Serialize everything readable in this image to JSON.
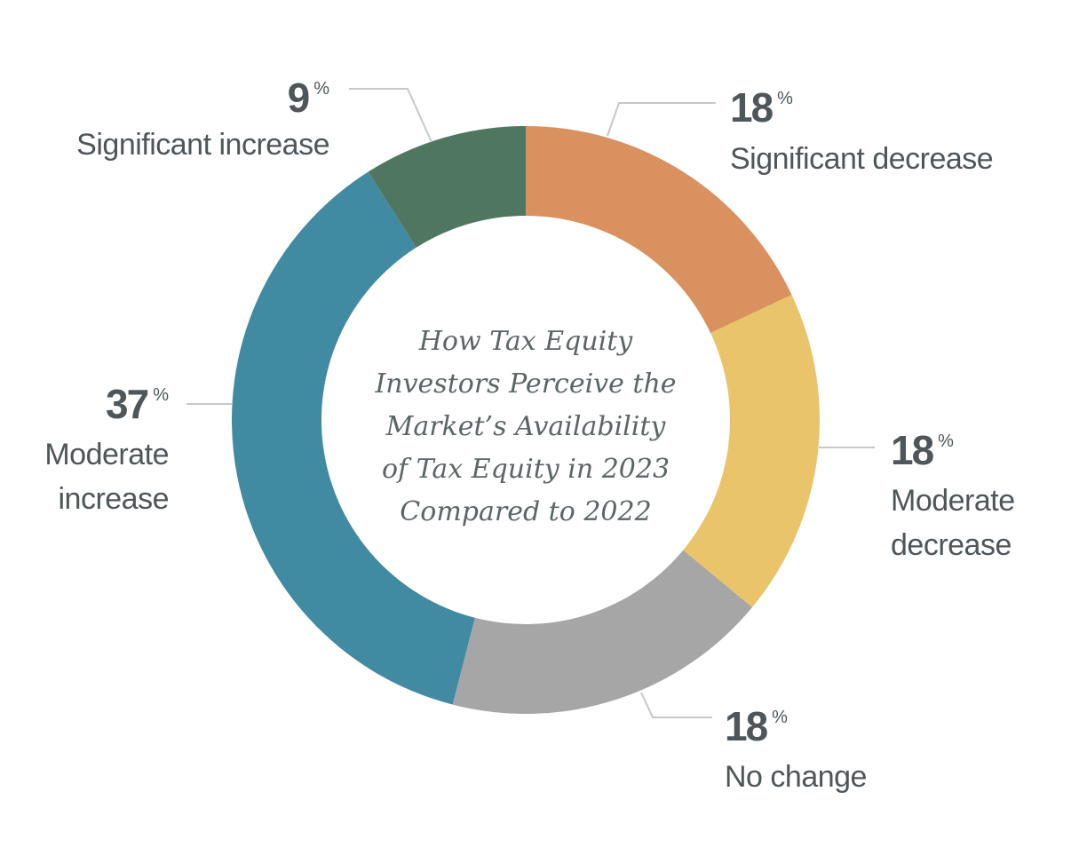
{
  "chart_data": {
    "type": "pie",
    "variant": "donut",
    "title": "How Tax Equity Investors Perceive the Market’s Availability of Tax Equity in 2023 Compared to 2022",
    "title_lines": [
      "How Tax Equity",
      "Investors Perceive the",
      "Market’s Availability",
      "of Tax Equity in 2023",
      "Compared to 2022"
    ],
    "unit": "%",
    "start": "top",
    "direction": "clockwise",
    "slices": [
      {
        "label": "Significant decrease",
        "label_lines": [
          "Significant decrease"
        ],
        "value": 18,
        "value_text": "18",
        "color": "#d99160",
        "label_side": "right"
      },
      {
        "label": "Moderate decrease",
        "label_lines": [
          "Moderate",
          "decrease"
        ],
        "value": 18,
        "value_text": "18",
        "color": "#e9c46a",
        "label_side": "right"
      },
      {
        "label": "No change",
        "label_lines": [
          "No change"
        ],
        "value": 18,
        "value_text": "18",
        "color": "#a5a6a5",
        "label_side": "right"
      },
      {
        "label": "Moderate increase",
        "label_lines": [
          "Moderate",
          "increase"
        ],
        "value": 37,
        "value_text": "37",
        "color": "#408aa2",
        "label_side": "left"
      },
      {
        "label": "Significant increase",
        "label_lines": [
          "Significant increase"
        ],
        "value": 9,
        "value_text": "9",
        "color": "#4f7760",
        "label_side": "left"
      }
    ],
    "legend": "none (labels with leader lines)"
  }
}
